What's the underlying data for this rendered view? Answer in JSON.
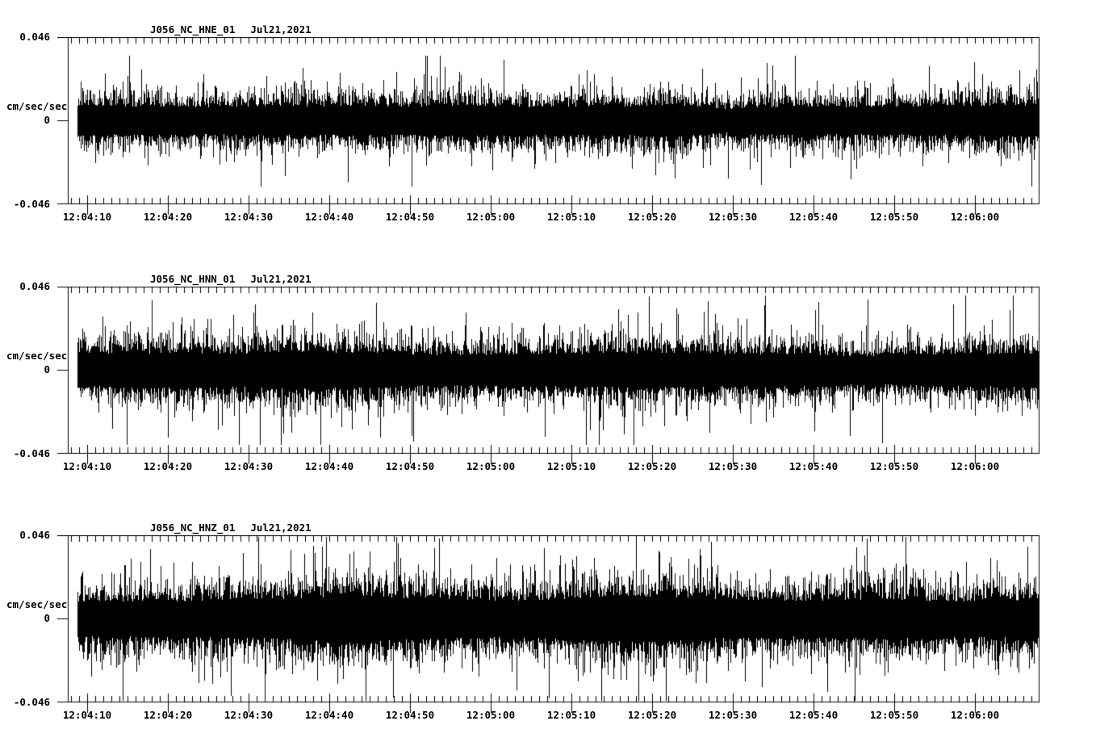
{
  "page": {
    "background": "#ffffff",
    "ink": "#000000"
  },
  "chart_data": [
    {
      "type": "line",
      "subtype": "seismogram",
      "title": "J056_NC_HNE_01",
      "date": "Jul21,2021",
      "ylabel": "cm/sec/sec",
      "ytick_labels": [
        "0.046",
        "0",
        "-0.046"
      ],
      "ylim": [
        -0.046,
        0.046
      ],
      "xtick_labels": [
        "12:04:10",
        "12:04:20",
        "12:04:30",
        "12:04:40",
        "12:04:50",
        "12:05:00",
        "12:05:10",
        "12:05:20",
        "12:05:30",
        "12:05:40",
        "12:05:50",
        "12:06:00"
      ],
      "x_major_step_sec": 10,
      "x_minor_step_sec": 1,
      "grid": false,
      "legend": "none",
      "trace": {
        "band_amplitude": 0.0125,
        "peak_amplitude": 0.036,
        "envelope_step_sec": 5,
        "envelope": [
          1.0,
          1.0,
          1.0,
          0.95,
          1.0,
          1.05,
          1.0,
          1.05,
          1.0,
          1.05,
          1.1,
          1.0,
          1.0,
          1.05,
          1.0,
          1.2,
          0.8,
          0.95,
          1.0,
          1.0,
          0.95,
          1.0,
          1.05,
          1.1,
          1.1
        ]
      }
    },
    {
      "type": "line",
      "subtype": "seismogram",
      "title": "J056_NC_HNN_01",
      "date": "Jul21,2021",
      "ylabel": "cm/sec/sec",
      "ytick_labels": [
        "0.046",
        "0",
        "-0.046"
      ],
      "ylim": [
        -0.046,
        0.046
      ],
      "xtick_labels": [
        "12:04:10",
        "12:04:20",
        "12:04:30",
        "12:04:40",
        "12:04:50",
        "12:05:00",
        "12:05:10",
        "12:05:20",
        "12:05:30",
        "12:05:40",
        "12:05:50",
        "12:06:00"
      ],
      "x_major_step_sec": 10,
      "x_minor_step_sec": 1,
      "grid": false,
      "legend": "none",
      "trace": {
        "band_amplitude": 0.014,
        "peak_amplitude": 0.041,
        "envelope_step_sec": 5,
        "envelope": [
          0.95,
          1.05,
          1.1,
          1.1,
          1.05,
          1.15,
          1.2,
          1.1,
          1.05,
          0.95,
          0.95,
          1.0,
          1.0,
          1.05,
          1.1,
          1.1,
          1.05,
          1.0,
          1.05,
          0.95,
          0.9,
          0.95,
          1.0,
          1.05,
          1.1
        ]
      }
    },
    {
      "type": "line",
      "subtype": "seismogram",
      "title": "J056_NC_HNZ_01",
      "date": "Jul21,2021",
      "ylabel": "cm/sec/sec",
      "ytick_labels": [
        "0.046",
        "0",
        "-0.046"
      ],
      "ylim": [
        -0.046,
        0.046
      ],
      "xtick_labels": [
        "12:04:10",
        "12:04:20",
        "12:04:30",
        "12:04:40",
        "12:04:50",
        "12:05:00",
        "12:05:10",
        "12:05:20",
        "12:05:30",
        "12:05:40",
        "12:05:50",
        "12:06:00"
      ],
      "x_major_step_sec": 10,
      "x_minor_step_sec": 1,
      "grid": false,
      "legend": "none",
      "trace": {
        "band_amplitude": 0.016,
        "peak_amplitude": 0.045,
        "envelope_step_sec": 5,
        "envelope": [
          0.95,
          1.0,
          1.0,
          1.0,
          1.05,
          1.1,
          1.2,
          1.3,
          1.2,
          1.1,
          1.05,
          1.0,
          1.05,
          1.2,
          1.3,
          1.2,
          1.1,
          1.05,
          1.0,
          1.05,
          1.1,
          1.05,
          1.0,
          1.05,
          1.05
        ]
      }
    }
  ]
}
